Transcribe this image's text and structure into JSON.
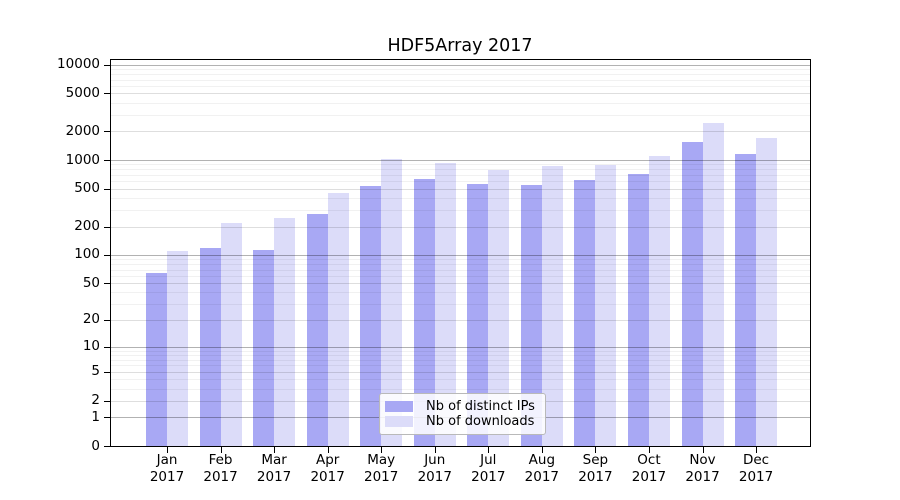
{
  "title": "HDF5Array 2017",
  "chart_data": {
    "type": "bar",
    "title": "HDF5Array 2017",
    "categories": [
      "Jan",
      "Feb",
      "Mar",
      "Apr",
      "May",
      "Jun",
      "Jul",
      "Aug",
      "Sep",
      "Oct",
      "Nov",
      "Dec"
    ],
    "category_year": "2017",
    "series": [
      {
        "name": "Nb of distinct IPs",
        "color": "#a8a8f4",
        "values": [
          65,
          120,
          114,
          270,
          535,
          627,
          560,
          548,
          616,
          706,
          1565,
          1160
        ]
      },
      {
        "name": "Nb of downloads",
        "color": "#dcdcf9",
        "values": [
          111,
          219,
          246,
          452,
          1020,
          926,
          785,
          870,
          891,
          1103,
          2442,
          1706
        ]
      }
    ],
    "yscale": "log10(1+x)",
    "yticks": [
      0,
      1,
      2,
      5,
      10,
      20,
      50,
      100,
      200,
      500,
      1000,
      2000,
      5000,
      10000
    ],
    "ylim": [
      0,
      11500
    ],
    "xlabel": "",
    "ylabel": "",
    "grid": true,
    "legend_position": "inside-bottom-center"
  },
  "colors": {
    "grid_major": "rgba(0,0,0,0.30)",
    "grid_mid": "rgba(0,0,0,0.13)",
    "grid_minor": "rgba(0,0,0,0.055)",
    "axis": "#000000",
    "background": "#ffffff"
  }
}
